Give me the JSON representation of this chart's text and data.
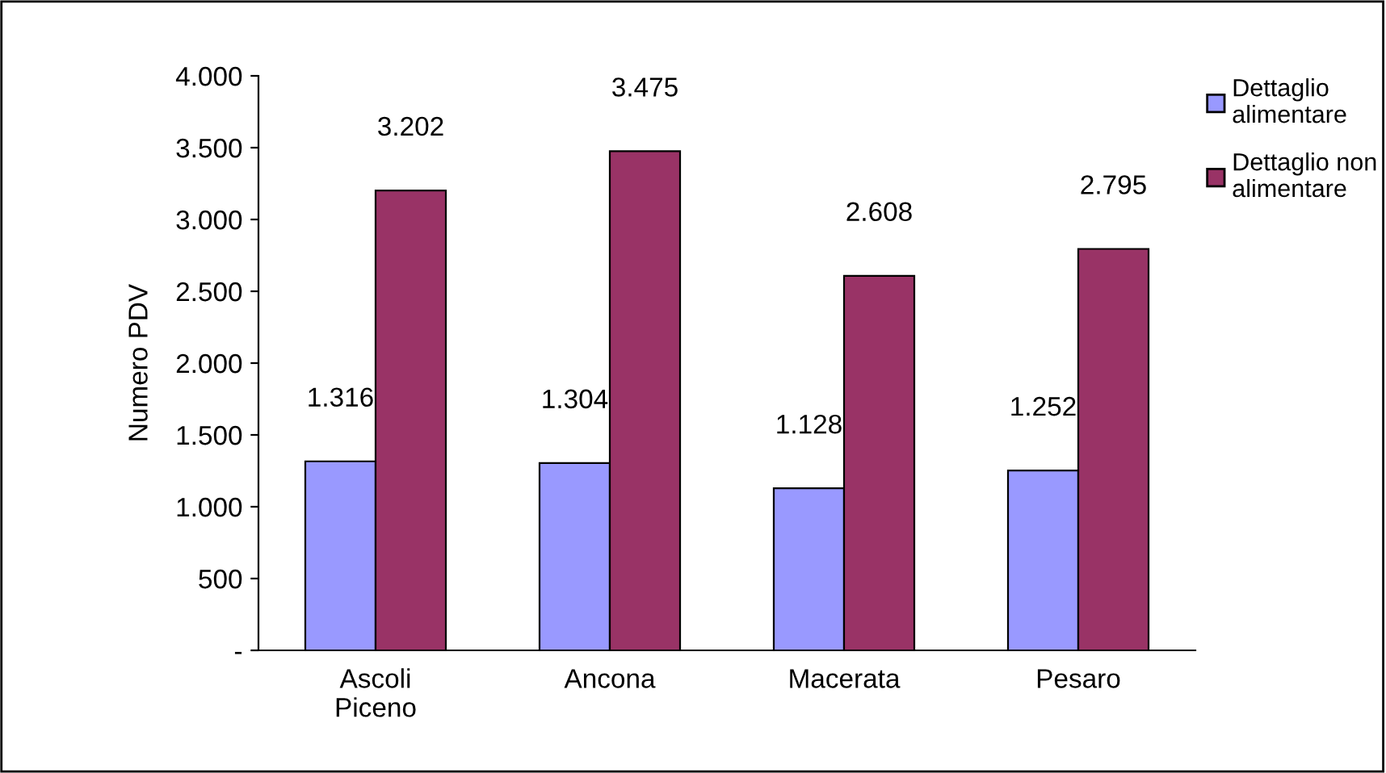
{
  "chart_data": {
    "type": "bar",
    "ylabel": "Numero PDV",
    "categories": [
      "Ascoli Piceno",
      "Ancona",
      "Macerata",
      "Pesaro"
    ],
    "series": [
      {
        "name": "Dettaglio alimentare",
        "color": "#9999ff",
        "values": [
          1316,
          1304,
          1128,
          1252
        ],
        "value_labels": [
          "1.316",
          "1.304",
          "1.128",
          "1.252"
        ]
      },
      {
        "name": "Dettaglio non alimentare",
        "color": "#993366",
        "values": [
          3202,
          3475,
          2608,
          2795
        ],
        "value_labels": [
          "3.202",
          "3.475",
          "2.608",
          "2.795"
        ]
      }
    ],
    "ylim": [
      0,
      4000
    ],
    "yticks": [
      {
        "value": 0,
        "label": "-"
      },
      500,
      {
        "value": 1000,
        "label": "1.000"
      },
      {
        "value": 1500,
        "label": "1.500"
      },
      {
        "value": 2000,
        "label": "2.000"
      },
      {
        "value": 2500,
        "label": "2.500"
      },
      {
        "value": 3000,
        "label": "3.000"
      },
      {
        "value": 3500,
        "label": "3.500"
      },
      {
        "value": 4000,
        "label": "4.000"
      }
    ],
    "grid": false,
    "legend": "right"
  }
}
